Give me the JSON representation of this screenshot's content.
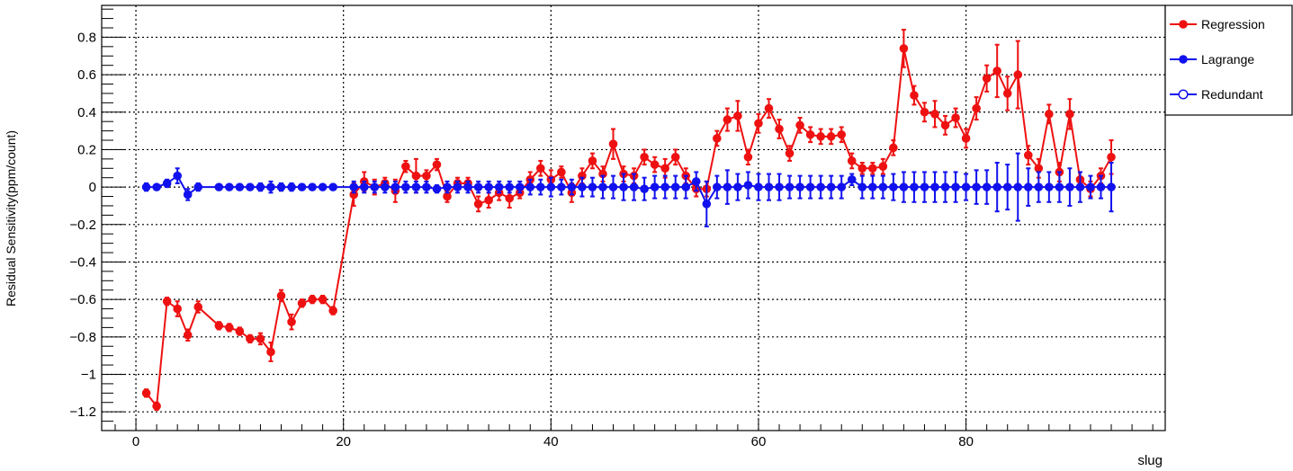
{
  "chart_data": {
    "type": "scatter",
    "title": "",
    "xlabel": "slug",
    "ylabel": "Residual Sensitivity(ppm/count)",
    "xlim": [
      -3.3,
      99.2
    ],
    "ylim": [
      -1.3,
      0.97
    ],
    "xticks": [
      0,
      20,
      40,
      60,
      80
    ],
    "xtick_labels": [
      "0",
      "20",
      "40",
      "60",
      "80"
    ],
    "yticks": [
      -1.2,
      -1.0,
      -0.8,
      -0.6,
      -0.4,
      -0.2,
      0,
      0.2,
      0.4,
      0.6,
      0.8
    ],
    "ytick_labels": [
      "−1.2",
      "−1",
      "−0.8",
      "−0.6",
      "−0.4",
      "−0.2",
      "0",
      "0.2",
      "0.4",
      "0.6",
      "0.8"
    ],
    "grid": true,
    "legend": "top-right",
    "series": [
      {
        "name": "Regression",
        "color": "#ee1111",
        "marker": "filled-circle",
        "x": [
          1,
          2,
          3,
          4,
          5,
          6,
          8,
          9,
          10,
          11,
          12,
          13,
          14,
          15,
          16,
          17,
          18,
          19,
          21,
          22,
          23,
          24,
          25,
          26,
          27,
          28,
          29,
          30,
          31,
          32,
          33,
          34,
          35,
          36,
          37,
          38,
          39,
          40,
          41,
          42,
          43,
          44,
          45,
          46,
          47,
          48,
          49,
          50,
          51,
          52,
          53,
          54,
          55,
          56,
          57,
          58,
          59,
          60,
          61,
          62,
          63,
          64,
          65,
          66,
          67,
          68,
          69,
          70,
          71,
          72,
          73,
          74,
          75,
          76,
          77,
          78,
          79,
          80,
          81,
          82,
          83,
          84,
          85,
          86,
          87,
          88,
          89,
          90,
          91,
          92,
          93,
          94
        ],
        "y": [
          -1.1,
          -1.17,
          -0.61,
          -0.65,
          -0.79,
          -0.64,
          -0.74,
          -0.75,
          -0.77,
          -0.81,
          -0.81,
          -0.88,
          -0.58,
          -0.72,
          -0.62,
          -0.6,
          -0.6,
          -0.66,
          -0.04,
          0.03,
          0.0,
          0.02,
          -0.02,
          0.11,
          0.06,
          0.06,
          0.12,
          -0.05,
          0.02,
          0.02,
          -0.09,
          -0.07,
          -0.03,
          -0.06,
          -0.03,
          0.04,
          0.1,
          0.04,
          0.08,
          -0.03,
          0.06,
          0.14,
          0.07,
          0.23,
          0.07,
          0.06,
          0.16,
          0.12,
          0.1,
          0.16,
          0.06,
          -0.01,
          -0.01,
          0.26,
          0.36,
          0.38,
          0.16,
          0.34,
          0.42,
          0.31,
          0.18,
          0.33,
          0.28,
          0.27,
          0.27,
          0.28,
          0.14,
          0.1,
          0.1,
          0.11,
          0.21,
          0.74,
          0.49,
          0.4,
          0.39,
          0.33,
          0.37,
          0.26,
          0.42,
          0.58,
          0.62,
          0.5,
          0.6,
          0.17,
          0.1,
          0.39,
          0.08,
          0.39,
          0.04,
          -0.01,
          0.06,
          0.16
        ],
        "yerr": [
          0.02,
          0.02,
          0.02,
          0.04,
          0.03,
          0.03,
          0.02,
          0.02,
          0.02,
          0.02,
          0.03,
          0.05,
          0.03,
          0.04,
          0.02,
          0.02,
          0.02,
          0.02,
          0.06,
          0.05,
          0.04,
          0.03,
          0.06,
          0.03,
          0.09,
          0.03,
          0.03,
          0.03,
          0.03,
          0.03,
          0.04,
          0.04,
          0.04,
          0.05,
          0.03,
          0.04,
          0.04,
          0.05,
          0.03,
          0.05,
          0.04,
          0.04,
          0.04,
          0.08,
          0.04,
          0.04,
          0.04,
          0.04,
          0.05,
          0.04,
          0.04,
          0.04,
          0.04,
          0.04,
          0.06,
          0.08,
          0.04,
          0.05,
          0.05,
          0.05,
          0.04,
          0.04,
          0.04,
          0.04,
          0.04,
          0.04,
          0.04,
          0.03,
          0.03,
          0.04,
          0.04,
          0.1,
          0.05,
          0.05,
          0.07,
          0.05,
          0.05,
          0.05,
          0.06,
          0.07,
          0.14,
          0.09,
          0.18,
          0.05,
          0.05,
          0.05,
          0.05,
          0.08,
          0.04,
          0.04,
          0.04,
          0.09
        ]
      },
      {
        "name": "Lagrange",
        "color": "#1111ee",
        "marker": "filled-circle",
        "x": [
          1,
          2,
          3,
          4,
          5,
          6,
          8,
          9,
          10,
          11,
          12,
          13,
          14,
          15,
          16,
          17,
          18,
          19,
          21,
          22,
          23,
          24,
          25,
          26,
          27,
          28,
          29,
          30,
          31,
          32,
          33,
          34,
          35,
          36,
          37,
          38,
          39,
          40,
          41,
          42,
          43,
          44,
          45,
          46,
          47,
          48,
          49,
          50,
          51,
          52,
          53,
          54,
          55,
          56,
          57,
          58,
          59,
          60,
          61,
          62,
          63,
          64,
          65,
          66,
          67,
          68,
          69,
          70,
          71,
          72,
          73,
          74,
          75,
          76,
          77,
          78,
          79,
          80,
          81,
          82,
          83,
          84,
          85,
          86,
          87,
          88,
          89,
          90,
          91,
          92,
          93,
          94
        ],
        "y": [
          0.0,
          0.0,
          0.02,
          0.06,
          -0.04,
          0.0,
          0.0,
          0.0,
          0.0,
          0.0,
          0.0,
          0.0,
          0.0,
          0.0,
          0.0,
          0.0,
          0.0,
          0.0,
          0.0,
          0.0,
          0.0,
          0.0,
          0.0,
          0.0,
          0.0,
          0.0,
          -0.01,
          0.0,
          0.0,
          0.0,
          0.0,
          0.0,
          0.0,
          0.0,
          0.0,
          0.0,
          0.0,
          0.0,
          0.0,
          0.0,
          0.0,
          0.0,
          0.0,
          0.0,
          0.0,
          0.0,
          -0.01,
          0.0,
          0.0,
          0.0,
          0.0,
          0.03,
          -0.09,
          0.0,
          0.0,
          0.0,
          0.01,
          0.0,
          0.0,
          0.0,
          0.0,
          0.0,
          0.0,
          0.0,
          0.0,
          0.0,
          0.04,
          0.0,
          0.0,
          0.0,
          0.0,
          0.0,
          0.0,
          0.0,
          0.0,
          0.0,
          0.0,
          0.0,
          0.0,
          0.0,
          0.0,
          0.0,
          0.0,
          0.0,
          0.0,
          0.0,
          0.0,
          0.0,
          0.0,
          0.0,
          0.0,
          0.0
        ],
        "yerr": [
          0.02,
          0.01,
          0.02,
          0.04,
          0.03,
          0.02,
          0.01,
          0.01,
          0.01,
          0.01,
          0.02,
          0.03,
          0.02,
          0.02,
          0.01,
          0.01,
          0.01,
          0.01,
          0.03,
          0.03,
          0.03,
          0.03,
          0.03,
          0.03,
          0.03,
          0.03,
          0.02,
          0.03,
          0.03,
          0.03,
          0.03,
          0.03,
          0.03,
          0.03,
          0.03,
          0.04,
          0.04,
          0.05,
          0.04,
          0.04,
          0.05,
          0.05,
          0.06,
          0.06,
          0.07,
          0.07,
          0.06,
          0.06,
          0.06,
          0.06,
          0.06,
          0.05,
          0.12,
          0.06,
          0.09,
          0.07,
          0.07,
          0.07,
          0.07,
          0.07,
          0.06,
          0.06,
          0.06,
          0.06,
          0.06,
          0.06,
          0.03,
          0.06,
          0.06,
          0.06,
          0.07,
          0.08,
          0.08,
          0.08,
          0.08,
          0.08,
          0.08,
          0.07,
          0.09,
          0.09,
          0.13,
          0.12,
          0.18,
          0.1,
          0.08,
          0.08,
          0.08,
          0.1,
          0.08,
          0.06,
          0.06,
          0.13
        ]
      },
      {
        "name": "Redundant",
        "color": "#1111ee",
        "marker": "open-circle",
        "x": [],
        "y": [],
        "yerr": []
      }
    ]
  }
}
